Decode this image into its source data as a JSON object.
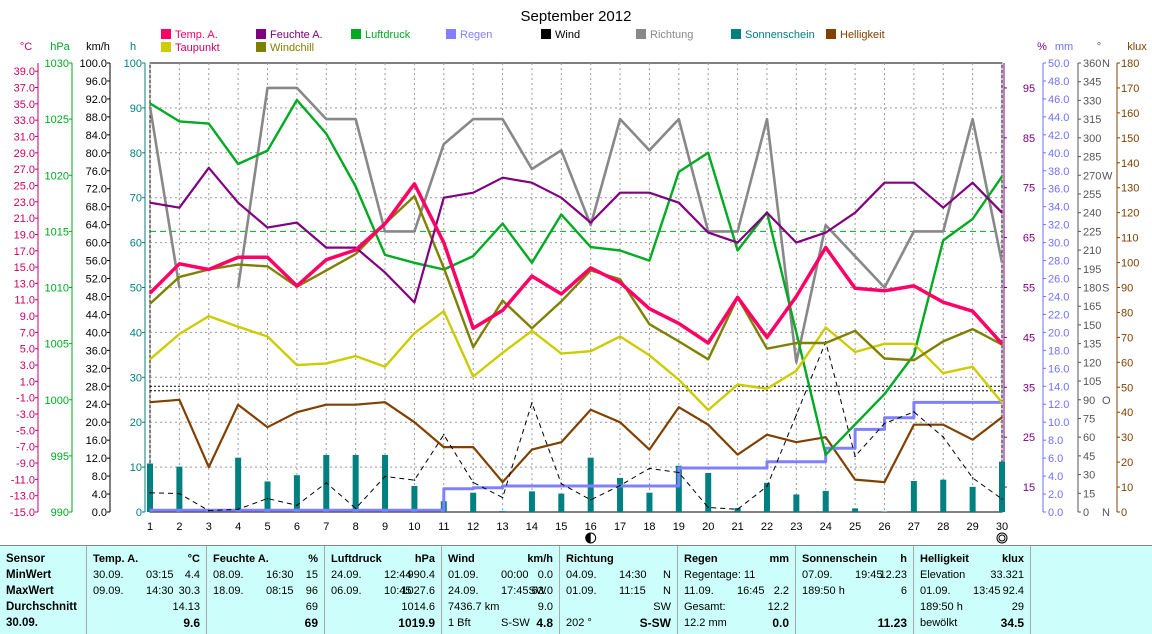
{
  "title": "September 2012",
  "legend": [
    {
      "label": "Temp. A.",
      "color": "#ff0066"
    },
    {
      "label": "Feuchte A.",
      "color": "#800080"
    },
    {
      "label": "Luftdruck",
      "color": "#00aa22"
    },
    {
      "label": "Regen",
      "color": "#8080ff"
    },
    {
      "label": "Wind",
      "color": "#000000"
    },
    {
      "label": "Richtung",
      "color": "#888888"
    },
    {
      "label": "Sonnenschein",
      "color": "#008080"
    },
    {
      "label": "Helligkeit",
      "color": "#804000"
    },
    {
      "label": "Taupunkt",
      "color": "#cccc00"
    },
    {
      "label": "Windchill",
      "color": "#808000"
    }
  ],
  "axes": {
    "units": {
      "temp": "°C",
      "press": "hPa",
      "wind": "km/h",
      "sun": "h",
      "hum": "%",
      "rain": "mm",
      "dir": "°",
      "lux": "klux"
    },
    "temp_ticks": [
      "39.0",
      "37.0",
      "35.0",
      "33.0",
      "31.0",
      "29.0",
      "27.0",
      "25.0",
      "23.0",
      "21.0",
      "19.0",
      "17.0",
      "15.0",
      "13.0",
      "11.0",
      "9.0",
      "7.0",
      "5.0",
      "3.0",
      "1.0",
      "-1.0",
      "-3.0",
      "-5.0",
      "-7.0",
      "-9.0",
      "-11.0",
      "-13.0",
      "-15.0"
    ],
    "press_ticks": [
      "1030",
      "1025",
      "1020",
      "1015",
      "1010",
      "1005",
      "1000",
      "995",
      "990"
    ],
    "wind_ticks": [
      "100.0",
      "96.0",
      "92.0",
      "88.0",
      "84.0",
      "80.0",
      "76.0",
      "72.0",
      "68.0",
      "64.0",
      "60.0",
      "56.0",
      "52.0",
      "48.0",
      "44.0",
      "40.0",
      "36.0",
      "32.0",
      "28.0",
      "24.0",
      "20.0",
      "16.0",
      "12.0",
      "8.0",
      "4.0",
      "0.0"
    ],
    "sun_ticks": [
      "100",
      "90",
      "80",
      "70",
      "60",
      "50",
      "40",
      "30",
      "20",
      "10",
      "0"
    ],
    "hum_ticks": [
      "95",
      "85",
      "75",
      "65",
      "55",
      "45",
      "35",
      "25",
      "15"
    ],
    "rain_ticks": [
      "50.0",
      "48.0",
      "46.0",
      "44.0",
      "42.0",
      "40.0",
      "38.0",
      "36.0",
      "34.0",
      "32.0",
      "30.0",
      "28.0",
      "26.0",
      "24.0",
      "22.0",
      "20.0",
      "18.0",
      "16.0",
      "14.0",
      "12.0",
      "10.0",
      "8.0",
      "6.0",
      "4.0",
      "2.0",
      "0.0"
    ],
    "dir_ticks": [
      "360",
      "345",
      "330",
      "315",
      "300",
      "285",
      "270",
      "255",
      "240",
      "225",
      "210",
      "195",
      "180",
      "165",
      "150",
      "135",
      "120",
      "105",
      "90",
      "75",
      "60",
      "45",
      "30",
      "15",
      "0"
    ],
    "dir_letters": [
      "N",
      "W",
      "S",
      "O",
      "N"
    ],
    "lux_ticks": [
      "180",
      "170",
      "160",
      "150",
      "140",
      "130",
      "120",
      "110",
      "100",
      "90",
      "80",
      "70",
      "60",
      "50",
      "40",
      "30",
      "20",
      "10",
      "0"
    ],
    "x_ticks": [
      "1",
      "2",
      "3",
      "4",
      "5",
      "6",
      "7",
      "8",
      "9",
      "10",
      "11",
      "12",
      "13",
      "14",
      "15",
      "16",
      "17",
      "18",
      "19",
      "20",
      "21",
      "22",
      "23",
      "24",
      "25",
      "26",
      "27",
      "28",
      "29",
      "30"
    ]
  },
  "chart_data": {
    "type": "line",
    "title": "September 2012",
    "x": [
      1,
      2,
      3,
      4,
      5,
      6,
      7,
      8,
      9,
      10,
      11,
      12,
      13,
      14,
      15,
      16,
      17,
      18,
      19,
      20,
      21,
      22,
      23,
      24,
      25,
      26,
      27,
      28,
      29,
      30
    ],
    "series": [
      {
        "name": "Temp. A.",
        "unit": "°C",
        "color": "#ff0066",
        "values": [
          11.8,
          15.4,
          14.7,
          16.2,
          16.2,
          12.7,
          15.9,
          17.1,
          20.3,
          25.2,
          18.0,
          7.5,
          9.7,
          13.9,
          11.7,
          14.9,
          13.1,
          9.9,
          8.1,
          5.7,
          11.3,
          6.4,
          11.4,
          17.4,
          12.4,
          12.1,
          12.7,
          10.7,
          9.6,
          5.6
        ]
      },
      {
        "name": "Feuchte A.",
        "unit": "%",
        "color": "#800080",
        "values": [
          72,
          71,
          79,
          72,
          67,
          68,
          63,
          63,
          58,
          52,
          73,
          74,
          77,
          76,
          73,
          68,
          74,
          74,
          72,
          66,
          64,
          70,
          64,
          66,
          70,
          76,
          76,
          71,
          76,
          70
        ]
      },
      {
        "name": "Luftdruck",
        "unit": "hPa",
        "color": "#00aa22",
        "values": [
          1026.4,
          1024.8,
          1024.6,
          1021.0,
          1022.2,
          1026.7,
          1023.7,
          1019.0,
          1012.9,
          1012.2,
          1011.6,
          1012.8,
          1015.7,
          1012.2,
          1016.5,
          1013.6,
          1013.3,
          1012.4,
          1020.3,
          1022.0,
          1013.3,
          1016.7,
          1006.0,
          995.1,
          997.8,
          1000.5,
          1004.0,
          1014.2,
          1016.1,
          1019.9
        ]
      },
      {
        "name": "Regen",
        "unit": "mm",
        "color": "#8080ff",
        "values": [
          0.2,
          0.2,
          0.2,
          0.2,
          0.2,
          0.2,
          0.2,
          0.2,
          0.2,
          0.2,
          2.6,
          2.7,
          2.9,
          2.9,
          2.9,
          2.9,
          2.9,
          2.9,
          4.9,
          4.9,
          4.9,
          5.6,
          5.6,
          7.1,
          9.2,
          10.5,
          12.2,
          12.2,
          12.2,
          12.2
        ]
      },
      {
        "name": "Wind",
        "unit": "km/h",
        "color": "#000000",
        "values": [
          4.3,
          4.1,
          0.3,
          0.6,
          3.0,
          1.5,
          6.5,
          0.8,
          7.9,
          7.1,
          17.2,
          6.6,
          3.2,
          24.3,
          6.3,
          2.7,
          5.9,
          9.7,
          8.8,
          1.0,
          0.6,
          5.7,
          21.6,
          37.9,
          12.4,
          19.7,
          22.3,
          16.7,
          7.6,
          2.9
        ]
      },
      {
        "name": "Richtung",
        "unit": "°",
        "color": "#888888",
        "values": [
          325,
          180,
          null,
          180,
          340,
          340,
          315,
          315,
          225,
          225,
          295,
          315,
          315,
          275,
          290,
          230,
          315,
          290,
          315,
          225,
          225,
          315,
          120,
          230,
          205,
          180,
          225,
          225,
          315,
          200
        ]
      },
      {
        "name": "Sonnenschein",
        "unit": "h",
        "color": "#008080",
        "values": [
          10.8,
          10.1,
          0.5,
          12.1,
          6.8,
          8.2,
          12.7,
          12.7,
          12.7,
          5.8,
          2.4,
          4.3,
          0.2,
          4.6,
          4.1,
          12.1,
          7.6,
          4.3,
          10.3,
          8.7,
          0.9,
          6.5,
          3.9,
          4.7,
          0.8,
          0.1,
          6.9,
          7.2,
          5.6,
          11.2
        ]
      },
      {
        "name": "Helligkeit",
        "unit": "klux",
        "color": "#804000",
        "values": [
          44,
          45,
          18,
          43,
          34,
          40,
          43,
          43,
          44,
          36,
          26,
          26,
          12,
          25,
          28,
          41,
          36,
          25,
          42,
          35,
          23,
          31,
          28,
          30,
          13,
          12,
          35,
          35,
          29,
          38
        ]
      },
      {
        "name": "Taupunkt",
        "unit": "°C",
        "color": "#cccc00",
        "values": [
          3.7,
          6.8,
          9.0,
          7.7,
          6.5,
          3.0,
          3.2,
          4.1,
          2.8,
          6.9,
          9.6,
          1.6,
          4.5,
          7.2,
          4.4,
          4.7,
          6.5,
          4.2,
          1.2,
          -2.5,
          0.6,
          0.1,
          2.3,
          7.6,
          4.6,
          5.6,
          5.6,
          2.0,
          2.8,
          -1.6
        ]
      },
      {
        "name": "Windchill",
        "unit": "°C",
        "color": "#808000",
        "values": [
          10.5,
          13.8,
          14.7,
          15.3,
          15.1,
          12.6,
          14.6,
          16.6,
          20.3,
          23.7,
          14.9,
          5.2,
          10.9,
          7.5,
          10.8,
          14.6,
          13.5,
          8.0,
          5.9,
          3.7,
          11.3,
          5.0,
          5.7,
          5.7,
          7.2,
          3.8,
          3.6,
          5.9,
          7.4,
          5.5
        ]
      }
    ],
    "reference_lines": {
      "pressure_dashed": 1015.0,
      "wind_dotted": [
        28.0,
        27.0
      ]
    },
    "moon_markers": [
      {
        "day": 16,
        "phase": "new"
      },
      {
        "day": 30,
        "phase": "full"
      }
    ]
  },
  "table": {
    "row_labels": [
      "Sensor",
      "MinWert",
      "MaxWert",
      "Durchschnitt",
      "30.09."
    ],
    "columns": [
      {
        "name": "Temp. A.",
        "unit": "°C",
        "rows": [
          [
            "30.09.",
            "03:15",
            "4.4"
          ],
          [
            "09.09.",
            "14:30",
            "30.3"
          ],
          [
            "",
            "",
            "14.13"
          ],
          [
            "",
            "",
            "9.6"
          ]
        ]
      },
      {
        "name": "Feuchte A.",
        "unit": "%",
        "rows": [
          [
            "08.09.",
            "16:30",
            "15"
          ],
          [
            "18.09.",
            "08:15",
            "96"
          ],
          [
            "",
            "",
            "69"
          ],
          [
            "",
            "",
            "69"
          ]
        ]
      },
      {
        "name": "Luftdruck",
        "unit": "hPa",
        "rows": [
          [
            "24.09.",
            "12:44",
            "990.4"
          ],
          [
            "06.09.",
            "10:45",
            "1027.6"
          ],
          [
            "",
            "",
            "1014.6"
          ],
          [
            "",
            "",
            "1019.9"
          ]
        ]
      },
      {
        "name": "Wind",
        "unit": "km/h",
        "rows": [
          [
            "01.09.",
            "00:00",
            "0.0"
          ],
          [
            "24.09.",
            "17:45SW",
            "63.0"
          ],
          [
            "7436.7 km",
            "",
            "9.0"
          ],
          [
            "1 Bft",
            "S-SW",
            "4.8"
          ]
        ]
      },
      {
        "name": "Richtung",
        "unit": "",
        "rows": [
          [
            "04.09.",
            "14:30",
            "N"
          ],
          [
            "01.09.",
            "11:15",
            "N"
          ],
          [
            "",
            "",
            "SW"
          ],
          [
            "202 °",
            "",
            "S-SW"
          ]
        ]
      },
      {
        "name": "Regen",
        "unit": "mm",
        "rows": [
          [
            "Regentage: 11",
            "",
            ""
          ],
          [
            "11.09.",
            "16:45",
            "2.2"
          ],
          [
            "Gesamt:",
            "",
            "12.2"
          ],
          [
            "12.2 mm",
            "",
            "0.0"
          ]
        ]
      },
      {
        "name": "Sonnenschein",
        "unit": "h",
        "rows": [
          [
            "07.09.",
            "19:45",
            "12.23"
          ],
          [
            "189:50 h",
            "",
            "6"
          ],
          [
            "",
            "",
            ""
          ],
          [
            "",
            "",
            "11.23"
          ]
        ]
      },
      {
        "name": "Helligkeit",
        "unit": "klux",
        "rows": [
          [
            "Elevation",
            "",
            "33.321"
          ],
          [
            "01.09.",
            "13:45",
            "92.4"
          ],
          [
            "189:50 h",
            "",
            "29"
          ],
          [
            "bewölkt",
            "",
            "34.5"
          ]
        ]
      }
    ]
  }
}
